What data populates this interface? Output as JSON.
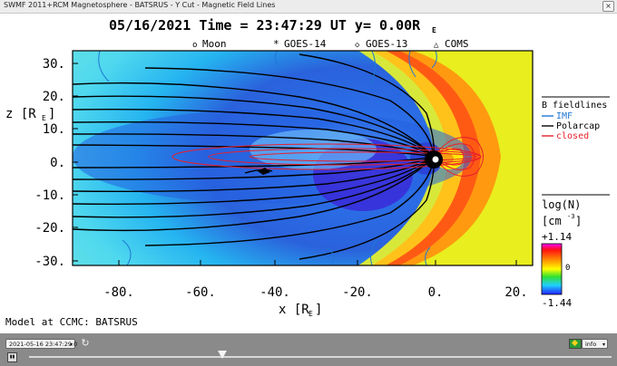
{
  "window": {
    "title": "SWMF 2011+RCM Magnetosphere - BATSRUS - Y Cut - Magnetic Field Lines",
    "close_icon": "close-icon"
  },
  "plot": {
    "header": "05/16/2021 Time = 23:47:29 UT y= 0.00R",
    "header_sub": "E",
    "markers": [
      {
        "symbol": "o",
        "label": "Moon"
      },
      {
        "symbol": "*",
        "label": "GOES-14"
      },
      {
        "symbol": "◇",
        "label": "GOES-13"
      },
      {
        "symbol": "△",
        "label": "COMS"
      }
    ],
    "y_axis_label": "z [R",
    "y_axis_sub": "E",
    "x_axis_label": "x [R",
    "x_axis_sub": "E",
    "y_ticks": [
      "30.",
      "20.",
      "10.",
      "0.",
      "-10.",
      "-20.",
      "-30."
    ],
    "x_ticks": [
      "-80.",
      "-60.",
      "-40.",
      "-20.",
      "0.",
      "20."
    ],
    "legend": {
      "title": "B fieldlines",
      "items": [
        {
          "label": "IMF",
          "color": "#1f77d4"
        },
        {
          "label": "Polarcap",
          "color": "#000000"
        },
        {
          "label": "closed",
          "color": "#e8202a"
        }
      ]
    },
    "colorbar": {
      "title": "log(N)",
      "unit": "[cm",
      "unit_sup": "-3",
      "max": "+1.14",
      "mid": "0",
      "min": "-1.44"
    },
    "footer": "Model at CCMC: BATSRUS"
  },
  "controls": {
    "timestamp": "2021-05-16 23:47:29.0",
    "refresh_icon": "refresh-icon",
    "flag_icon": "flag-icon",
    "info": "info",
    "play_icon": "play-icon"
  }
}
